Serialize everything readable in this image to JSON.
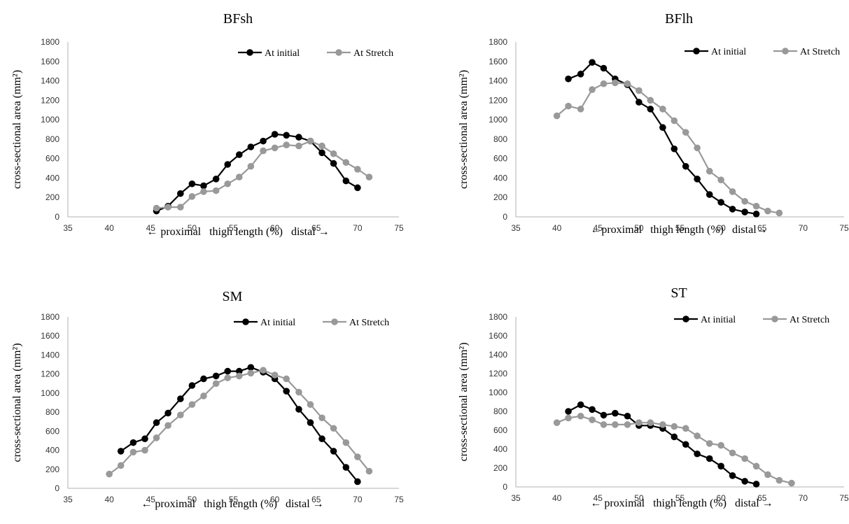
{
  "chart_data": [
    {
      "type": "line",
      "title": "BFsh",
      "xlabel": "← proximal   thigh length (%)   distal →",
      "ylabel": "cross-sectional area (mm²)",
      "xlim": [
        35,
        75
      ],
      "ylim": [
        0,
        1800
      ],
      "xticks": [
        35,
        40,
        45,
        50,
        55,
        60,
        65,
        70,
        75
      ],
      "yticks": [
        0,
        200,
        400,
        600,
        800,
        1000,
        1200,
        1400,
        1600,
        1800
      ],
      "grid": false,
      "legend_position": "top-right",
      "series": [
        {
          "name": "At initial",
          "color": "#000000",
          "x": [
            45.7,
            47.1,
            48.6,
            50.0,
            51.4,
            52.9,
            54.3,
            55.7,
            57.1,
            58.6,
            60.0,
            61.4,
            62.9,
            64.3,
            65.7,
            67.1,
            68.6,
            70.0
          ],
          "y": [
            60,
            110,
            240,
            340,
            320,
            390,
            540,
            640,
            720,
            780,
            850,
            840,
            820,
            780,
            660,
            550,
            370,
            300
          ]
        },
        {
          "name": "At Stretch",
          "color": "#999999",
          "x": [
            45.7,
            47.1,
            48.6,
            50.0,
            51.4,
            52.9,
            54.3,
            55.7,
            57.1,
            58.6,
            60.0,
            61.4,
            62.9,
            64.3,
            65.7,
            67.1,
            68.6,
            70.0,
            71.4
          ],
          "y": [
            90,
            100,
            100,
            210,
            260,
            270,
            340,
            410,
            520,
            680,
            710,
            740,
            730,
            780,
            730,
            650,
            560,
            490,
            410
          ]
        }
      ]
    },
    {
      "type": "line",
      "title": "BFlh",
      "xlabel": "←proximal   thigh length (%)   distal→",
      "ylabel": "cross-sectional area (mm²)",
      "xlim": [
        35,
        75
      ],
      "ylim": [
        0,
        1800
      ],
      "xticks": [
        35,
        40,
        45,
        50,
        55,
        60,
        65,
        70,
        75
      ],
      "yticks": [
        0,
        200,
        400,
        600,
        800,
        1000,
        1200,
        1400,
        1600,
        1800
      ],
      "grid": false,
      "legend_position": "top-right",
      "series": [
        {
          "name": "At initial",
          "color": "#000000",
          "x": [
            41.4,
            42.9,
            44.3,
            45.7,
            47.1,
            48.6,
            50.0,
            51.4,
            52.9,
            54.3,
            55.7,
            57.1,
            58.6,
            60.0,
            61.4,
            62.9,
            64.3
          ],
          "y": [
            1420,
            1470,
            1590,
            1530,
            1420,
            1360,
            1180,
            1110,
            920,
            700,
            520,
            390,
            230,
            150,
            80,
            50,
            30
          ]
        },
        {
          "name": "At Stretch",
          "color": "#999999",
          "x": [
            40.0,
            41.4,
            42.9,
            44.3,
            45.7,
            47.1,
            48.6,
            50.0,
            51.4,
            52.9,
            54.3,
            55.7,
            57.1,
            58.6,
            60.0,
            61.4,
            62.9,
            64.3,
            65.7,
            67.1
          ],
          "y": [
            1040,
            1140,
            1110,
            1310,
            1370,
            1380,
            1370,
            1300,
            1200,
            1110,
            990,
            870,
            710,
            470,
            380,
            260,
            160,
            110,
            60,
            40
          ]
        }
      ]
    },
    {
      "type": "line",
      "title": "SM",
      "xlabel": "← proximal   thigh length (%)   distal →",
      "ylabel": "cross-sectional area (mm²)",
      "xlim": [
        35,
        75
      ],
      "ylim": [
        0,
        1800
      ],
      "xticks": [
        35,
        40,
        45,
        50,
        55,
        60,
        65,
        70,
        75
      ],
      "yticks": [
        0,
        200,
        400,
        600,
        800,
        1000,
        1200,
        1400,
        1600,
        1800
      ],
      "grid": false,
      "legend_position": "top-right",
      "series": [
        {
          "name": "At initial",
          "color": "#000000",
          "x": [
            41.4,
            42.9,
            44.3,
            45.7,
            47.1,
            48.6,
            50.0,
            51.4,
            52.9,
            54.3,
            55.7,
            57.1,
            58.6,
            60.0,
            61.4,
            62.9,
            64.3,
            65.7,
            67.1,
            68.6,
            70.0
          ],
          "y": [
            390,
            480,
            520,
            690,
            790,
            940,
            1080,
            1150,
            1180,
            1230,
            1230,
            1270,
            1220,
            1150,
            1020,
            830,
            690,
            520,
            390,
            220,
            70
          ]
        },
        {
          "name": "At Stretch",
          "color": "#999999",
          "x": [
            40.0,
            41.4,
            42.9,
            44.3,
            45.7,
            47.1,
            48.6,
            50.0,
            51.4,
            52.9,
            54.3,
            55.7,
            57.1,
            58.6,
            60.0,
            61.4,
            62.9,
            64.3,
            65.7,
            67.1,
            68.6,
            70.0,
            71.4
          ],
          "y": [
            150,
            240,
            380,
            400,
            530,
            660,
            770,
            880,
            970,
            1100,
            1160,
            1180,
            1210,
            1240,
            1190,
            1150,
            1010,
            880,
            740,
            630,
            480,
            330,
            180
          ]
        }
      ]
    },
    {
      "type": "line",
      "title": "ST",
      "xlabel": "← proximal   thigh length (%)   distal →",
      "ylabel": "cross-sectional area (mm²)",
      "xlim": [
        35,
        75
      ],
      "ylim": [
        0,
        1800
      ],
      "xticks": [
        35,
        40,
        45,
        50,
        55,
        60,
        65,
        70,
        75
      ],
      "yticks": [
        0,
        200,
        400,
        600,
        800,
        1000,
        1200,
        1400,
        1600,
        1800
      ],
      "grid": false,
      "legend_position": "top-right",
      "series": [
        {
          "name": "At initial",
          "color": "#000000",
          "x": [
            41.4,
            42.9,
            44.3,
            45.7,
            47.1,
            48.6,
            50.0,
            51.4,
            52.9,
            54.3,
            55.7,
            57.1,
            58.6,
            60.0,
            61.4,
            62.9,
            64.3
          ],
          "y": [
            800,
            870,
            820,
            760,
            780,
            750,
            650,
            650,
            620,
            530,
            450,
            350,
            300,
            220,
            120,
            60,
            30
          ]
        },
        {
          "name": "At Stretch",
          "color": "#999999",
          "x": [
            40.0,
            41.4,
            42.9,
            44.3,
            45.7,
            47.1,
            48.6,
            50.0,
            51.4,
            52.9,
            54.3,
            55.7,
            57.1,
            58.6,
            60.0,
            61.4,
            62.9,
            64.3,
            65.7,
            67.1,
            68.6
          ],
          "y": [
            680,
            730,
            750,
            710,
            660,
            660,
            660,
            680,
            680,
            660,
            640,
            620,
            540,
            460,
            440,
            360,
            300,
            220,
            130,
            70,
            40
          ]
        }
      ]
    }
  ]
}
